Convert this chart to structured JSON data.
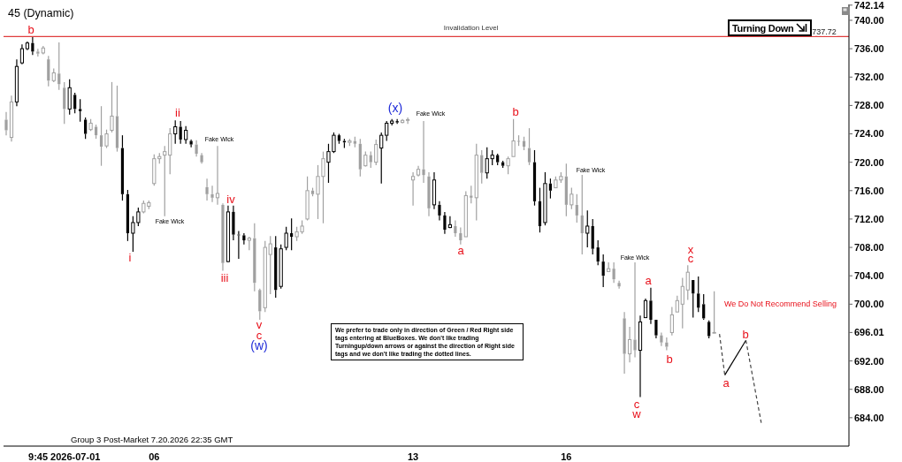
{
  "chart_data": {
    "type": "candlestick",
    "title": "45 (Dynamic)",
    "categories": [
      null,
      null,
      null,
      null,
      null,
      null,
      null,
      null,
      null,
      null,
      null,
      "9:45 2026-07-01",
      null,
      null,
      null,
      null,
      null,
      null,
      null,
      null,
      null,
      null,
      null,
      null,
      null,
      null,
      null,
      null,
      "06",
      null,
      null,
      null,
      null,
      null,
      null,
      null,
      null,
      null,
      null,
      null,
      null,
      null,
      null,
      null,
      null,
      null,
      null,
      null,
      null,
      null,
      null,
      null,
      null,
      null,
      null,
      null,
      null,
      null,
      null,
      null,
      null,
      null,
      null,
      null,
      null,
      null,
      null,
      null,
      null,
      null,
      null,
      null,
      null,
      null,
      null,
      null,
      null,
      "13",
      null,
      null,
      null,
      null,
      null,
      null,
      null,
      null,
      null,
      null,
      null,
      null,
      null,
      null,
      null,
      null,
      null,
      null,
      null,
      null,
      null,
      null,
      null,
      null,
      null,
      null,
      null,
      null,
      "16",
      null,
      null,
      null,
      null,
      null,
      null,
      null,
      null,
      null,
      null,
      null,
      null,
      null,
      null,
      null,
      null,
      null,
      null,
      null,
      null,
      null,
      null,
      null,
      null,
      null,
      null,
      null,
      null,
      null,
      null,
      null,
      null,
      null,
      null,
      null,
      null,
      null,
      null,
      null,
      null,
      null,
      null,
      null,
      null,
      null,
      null,
      null,
      null,
      null,
      null,
      null,
      null,
      null
    ],
    "ylim": [
      680,
      742.24
    ],
    "yticks": [
      {
        "value": 684,
        "label": "684.00"
      },
      {
        "value": 688,
        "label": "688.00"
      },
      {
        "value": 692,
        "label": "692.00"
      },
      696.01,
      {
        "value": 700,
        "label": "700.00"
      },
      {
        "value": 704,
        "label": "704.00"
      },
      {
        "value": 708,
        "label": "708.00"
      },
      {
        "value": 712,
        "label": "712.00"
      },
      {
        "value": 716,
        "label": "716.00"
      },
      {
        "value": 720,
        "label": "720.00"
      },
      {
        "value": 724,
        "label": "724.00"
      },
      {
        "value": 728,
        "label": "728.00"
      },
      {
        "value": 732,
        "label": "732.00"
      },
      {
        "value": 736,
        "label": "736.00"
      },
      {
        "value": 740,
        "label": "740.00"
      },
      742.14
    ],
    "series": [
      {
        "ohlc": [
          [
            726.0,
            727.1,
            723.8,
            724.5
          ],
          [
            723.5,
            729.4,
            722.9,
            728.5
          ],
          [
            728.5,
            734.5,
            727.9,
            733.5
          ],
          [
            734.0,
            736.6,
            733.8,
            736.0
          ],
          [
            736.0,
            737.0,
            735.8,
            736.8
          ],
          [
            736.8,
            737.72,
            735.1,
            735.6
          ],
          [
            735.6,
            736.0,
            734.9,
            735.3
          ],
          [
            735.4,
            736.4,
            735.2,
            736.1
          ],
          [
            734.5,
            735.0,
            730.7,
            731.5
          ],
          [
            731.5,
            733.2,
            731.3,
            732.6
          ],
          [
            732.5,
            736.9,
            730.2,
            731.0
          ],
          [
            730.5,
            731.3,
            725.4,
            727.5
          ],
          [
            727.5,
            731.7,
            726.7,
            730.5
          ],
          [
            729.5,
            729.8,
            726.9,
            727.5
          ],
          [
            727.5,
            728.9,
            725.7,
            727.2
          ],
          [
            726.0,
            726.3,
            723.3,
            724.0
          ],
          [
            724.6,
            726.1,
            724.4,
            725.5
          ],
          [
            725.0,
            725.3,
            723.3,
            723.8
          ],
          [
            723.8,
            727.9,
            719.5,
            722.2
          ],
          [
            722.3,
            724.6,
            722.0,
            724.0
          ],
          [
            724.5,
            731.3,
            724.2,
            726.5
          ],
          [
            726.5,
            730.8,
            721.5,
            722.0
          ],
          [
            722.0,
            723.8,
            714.6,
            715.5
          ],
          [
            715.5,
            716.1,
            708.9,
            710.0
          ],
          [
            710.0,
            712.4,
            707.4,
            711.5
          ],
          [
            711.5,
            713.6,
            711.0,
            713.0
          ],
          [
            713.0,
            714.6,
            712.8,
            714.2
          ],
          [
            713.8,
            714.6,
            713.4,
            714.3
          ],
          [
            717.0,
            721.1,
            716.7,
            720.5
          ],
          [
            720.5,
            721.3,
            719.8,
            720.8
          ],
          [
            721.0,
            722.3,
            712.4,
            721.5
          ],
          [
            721.0,
            724.8,
            718.3,
            724.0
          ],
          [
            724.0,
            725.9,
            722.6,
            725.0
          ],
          [
            725.0,
            725.8,
            722.6,
            723.2
          ],
          [
            723.2,
            725.1,
            722.6,
            724.5
          ],
          [
            723.0,
            723.2,
            722.1,
            722.5
          ],
          [
            722.5,
            723.1,
            720.8,
            721.2
          ],
          [
            721.0,
            721.3,
            719.8,
            720.0
          ],
          [
            716.5,
            717.7,
            714.6,
            715.5
          ],
          [
            715.5,
            716.7,
            714.4,
            715.0
          ],
          [
            715.0,
            722.3,
            714.0,
            715.6
          ],
          [
            714.0,
            714.2,
            704.7,
            705.8
          ],
          [
            706.0,
            713.9,
            705.9,
            713.0
          ],
          [
            713.0,
            713.9,
            709.0,
            709.8
          ],
          [
            709.8,
            710.3,
            706.4,
            709.7
          ],
          [
            709.7,
            710.0,
            708.4,
            709.0
          ],
          [
            709.0,
            709.5,
            707.6,
            709.3
          ],
          [
            709.3,
            711.4,
            701.8,
            703.0
          ],
          [
            702.0,
            702.2,
            697.8,
            699.0
          ],
          [
            699.5,
            708.9,
            698.9,
            708.0
          ],
          [
            707.0,
            709.6,
            701.4,
            708.5
          ],
          [
            708.0,
            709.6,
            700.9,
            702.0
          ],
          [
            702.5,
            708.4,
            702.2,
            707.8
          ],
          [
            708.0,
            710.9,
            707.6,
            710.0
          ],
          [
            710.0,
            712.1,
            707.6,
            709.5
          ],
          [
            709.5,
            710.9,
            708.9,
            710.2
          ],
          [
            710.2,
            711.8,
            709.9,
            711.0
          ],
          [
            712.0,
            718.0,
            711.8,
            716.0
          ],
          [
            716.0,
            716.4,
            715.2,
            715.5
          ],
          [
            715.5,
            719.6,
            712.0,
            718.0
          ],
          [
            718.0,
            721.5,
            711.4,
            720.5
          ],
          [
            720.0,
            722.6,
            717.1,
            721.5
          ],
          [
            721.5,
            724.2,
            721.3,
            723.8
          ],
          [
            723.8,
            724.0,
            722.6,
            723.0
          ],
          [
            723.0,
            723.3,
            722.0,
            722.8
          ],
          [
            722.8,
            723.3,
            722.3,
            723.0
          ],
          [
            723.0,
            723.6,
            722.1,
            722.6
          ],
          [
            722.6,
            723.3,
            718.0,
            719.0
          ],
          [
            719.5,
            721.5,
            719.4,
            721.0
          ],
          [
            721.0,
            721.5,
            719.2,
            720.0
          ],
          [
            720.0,
            723.2,
            719.6,
            722.5
          ],
          [
            722.0,
            724.2,
            717.0,
            723.8
          ],
          [
            723.8,
            725.8,
            723.0,
            725.5
          ],
          [
            725.5,
            726.1,
            725.2,
            725.8
          ],
          [
            725.8,
            726.1,
            725.4,
            725.6
          ],
          [
            725.6,
            726.1,
            725.5,
            725.9
          ],
          [
            725.9,
            726.3,
            725.4,
            726.0
          ],
          [
            717.5,
            718.6,
            713.9,
            718.0
          ],
          [
            718.2,
            719.5,
            718.0,
            719.0
          ],
          [
            719.0,
            725.8,
            717.1,
            718.2
          ],
          [
            718.0,
            718.6,
            712.4,
            713.5
          ],
          [
            714.0,
            718.6,
            713.4,
            717.5
          ],
          [
            714.0,
            714.5,
            711.8,
            712.5
          ],
          [
            712.5,
            713.0,
            709.9,
            710.5
          ],
          [
            710.8,
            712.4,
            710.7,
            711.2
          ],
          [
            711.0,
            711.8,
            709.5,
            710.0
          ],
          [
            710.0,
            710.8,
            708.4,
            709.0
          ],
          [
            709.5,
            715.9,
            709.5,
            715.3
          ],
          [
            715.3,
            716.7,
            714.2,
            715.0
          ],
          [
            715.0,
            722.6,
            711.8,
            721.0
          ],
          [
            721.0,
            721.7,
            717.0,
            718.5
          ],
          [
            718.5,
            722.1,
            717.7,
            720.5
          ],
          [
            720.5,
            721.7,
            719.6,
            721.0
          ],
          [
            721.0,
            721.2,
            719.6,
            720.0
          ],
          [
            720.0,
            720.2,
            719.2,
            719.5
          ],
          [
            719.5,
            720.8,
            718.3,
            720.5
          ],
          [
            720.8,
            726.1,
            720.8,
            723.0
          ],
          [
            723.0,
            723.8,
            722.3,
            723.0
          ],
          [
            723.0,
            723.6,
            721.7,
            722.2
          ],
          [
            722.0,
            724.8,
            719.6,
            720.0
          ],
          [
            720.0,
            721.7,
            713.9,
            714.5
          ],
          [
            714.5,
            716.4,
            710.1,
            711.0
          ],
          [
            711.5,
            718.6,
            711.1,
            717.0
          ],
          [
            717.0,
            717.7,
            714.9,
            716.0
          ],
          [
            716.4,
            718.0,
            716.4,
            717.5
          ],
          [
            717.5,
            718.6,
            717.1,
            718.0
          ],
          [
            718.0,
            719.8,
            712.4,
            714.0
          ],
          [
            714.0,
            716.4,
            713.4,
            715.5
          ],
          [
            714.0,
            715.5,
            711.5,
            712.5
          ],
          [
            712.5,
            718.2,
            707.0,
            710.0
          ],
          [
            710.0,
            713.2,
            708.0,
            711.0
          ],
          [
            711.0,
            712.0,
            707.0,
            707.8
          ],
          [
            708.0,
            709.0,
            705.5,
            706.0
          ],
          [
            706.0,
            707.0,
            702.4,
            704.0
          ],
          [
            704.6,
            705.9,
            704.6,
            705.0
          ],
          [
            705.0,
            705.9,
            703.0,
            703.5
          ],
          [
            703.0,
            703.3,
            702.2,
            702.5
          ],
          [
            698.0,
            698.9,
            690.2,
            693.0
          ],
          [
            693.0,
            696.8,
            691.8,
            695.0
          ],
          [
            695.0,
            705.9,
            692.5,
            693.5
          ],
          [
            693.5,
            698.4,
            686.9,
            697.5
          ],
          [
            698.1,
            700.8,
            698.1,
            700.5
          ],
          [
            700.5,
            702.3,
            697.2,
            697.8
          ],
          [
            697.8,
            697.8,
            695.2,
            695.6
          ],
          [
            695.6,
            696.0,
            694.1,
            694.6
          ],
          [
            694.6,
            695.3,
            693.5,
            694.0
          ],
          [
            696.0,
            699.6,
            695.6,
            698.5
          ],
          [
            698.9,
            701.2,
            698.9,
            700.5
          ],
          [
            700.0,
            703.7,
            696.6,
            702.5
          ],
          [
            702.0,
            705.5,
            700.6,
            704.5
          ],
          [
            703.4,
            703.4,
            698.1,
            701.5
          ],
          [
            701.5,
            703.9,
            698.9,
            699.5
          ],
          [
            700.0,
            701.4,
            697.8,
            698.0
          ],
          [
            697.5,
            697.7,
            695.2,
            695.5
          ],
          [
            696.0,
            701.8,
            695.9,
            696.01
          ],
          null,
          null,
          null,
          null,
          null,
          null,
          null,
          null,
          null,
          null,
          null,
          null,
          null,
          null,
          null,
          null,
          null,
          null,
          null,
          null,
          null,
          null,
          null,
          null,
          null
        ],
        "colors": [
          "#a0a0a0",
          "#a0a0a0",
          "#000000",
          "#000000",
          "#000000",
          "#000000",
          "#a0a0a0",
          "#a0a0a0",
          "#a0a0a0",
          "#a0a0a0",
          "#a0a0a0",
          "#a0a0a0",
          "#000000",
          "#000000",
          "#000000",
          "#000000",
          "#a0a0a0",
          "#a0a0a0",
          "#a0a0a0",
          "#a0a0a0",
          "#a0a0a0",
          "#a0a0a0",
          "#000000",
          "#000000",
          "#000000",
          "#000000",
          "#a0a0a0",
          "#a0a0a0",
          "#a0a0a0",
          "#a0a0a0",
          "#a0a0a0",
          "#a0a0a0",
          "#000000",
          "#000000",
          "#000000",
          "#000000",
          "#a0a0a0",
          "#a0a0a0",
          "#a0a0a0",
          "#a0a0a0",
          "#a0a0a0",
          "#a0a0a0",
          "#000000",
          "#000000",
          "#000000",
          "#000000",
          "#a0a0a0",
          "#a0a0a0",
          "#a0a0a0",
          "#a0a0a0",
          "#a0a0a0",
          "#000000",
          "#000000",
          "#000000",
          "#000000",
          "#a0a0a0",
          "#a0a0a0",
          "#a0a0a0",
          "#a0a0a0",
          "#a0a0a0",
          "#a0a0a0",
          "#000000",
          "#000000",
          "#000000",
          "#000000",
          "#a0a0a0",
          "#a0a0a0",
          "#a0a0a0",
          "#a0a0a0",
          "#a0a0a0",
          "#a0a0a0",
          "#000000",
          "#000000",
          "#000000",
          "#000000",
          "#a0a0a0",
          "#a0a0a0",
          "#a0a0a0",
          "#a0a0a0",
          "#a0a0a0",
          "#a0a0a0",
          "#000000",
          "#000000",
          "#000000",
          "#000000",
          "#a0a0a0",
          "#a0a0a0",
          "#a0a0a0",
          "#a0a0a0",
          "#a0a0a0",
          "#a0a0a0",
          "#000000",
          "#000000",
          "#000000",
          "#000000",
          "#a0a0a0",
          "#a0a0a0",
          "#a0a0a0",
          "#a0a0a0",
          "#a0a0a0",
          "#000000",
          "#000000",
          "#000000",
          "#000000",
          "#a0a0a0",
          "#a0a0a0",
          "#a0a0a0",
          "#a0a0a0",
          "#a0a0a0",
          "#a0a0a0",
          "#000000",
          "#000000",
          "#000000",
          "#000000",
          "#a0a0a0",
          "#a0a0a0",
          "#a0a0a0",
          "#a0a0a0",
          "#a0a0a0",
          "#a0a0a0",
          "#000000",
          "#000000",
          "#000000",
          "#000000",
          "#a0a0a0",
          "#a0a0a0",
          "#a0a0a0",
          "#a0a0a0",
          "#a0a0a0",
          "#a0a0a0",
          "#000000",
          "#000000",
          "#000000",
          "#000000",
          "#a0a0a0",
          null,
          null,
          null,
          null,
          null,
          null,
          null,
          null,
          null,
          null,
          null,
          null,
          null,
          null,
          null,
          null,
          null,
          null,
          null,
          null,
          null,
          null,
          null,
          null,
          null
        ]
      },
      {
        "type": "line",
        "color": "#444444",
        "line_style": "dashed",
        "values": [
          null,
          null,
          null,
          null,
          null,
          null,
          null,
          null,
          null,
          null,
          null,
          null,
          null,
          null,
          null,
          null,
          null,
          null,
          null,
          null,
          null,
          null,
          null,
          null,
          null,
          null,
          null,
          null,
          null,
          null,
          null,
          null,
          null,
          null,
          null,
          null,
          null,
          null,
          null,
          null,
          null,
          null,
          null,
          null,
          null,
          null,
          null,
          null,
          null,
          null,
          null,
          null,
          null,
          null,
          null,
          null,
          null,
          null,
          null,
          null,
          null,
          null,
          null,
          null,
          null,
          null,
          null,
          null,
          null,
          null,
          null,
          null,
          null,
          null,
          null,
          null,
          null,
          null,
          null,
          null,
          null,
          null,
          null,
          null,
          null,
          null,
          null,
          null,
          null,
          null,
          null,
          null,
          null,
          null,
          null,
          null,
          null,
          null,
          null,
          null,
          null,
          null,
          null,
          null,
          null,
          null,
          null,
          null,
          null,
          null,
          null,
          null,
          null,
          null,
          null,
          null,
          null,
          null,
          null,
          null,
          null,
          null,
          null,
          null,
          null,
          null,
          null,
          null,
          null,
          null,
          null,
          null,
          null,
          null,
          null,
          695.8,
          690.0,
          null,
          null,
          null,
          null,
          null,
          null,
          null,
          null,
          null,
          null,
          null,
          null,
          null,
          null,
          null,
          null,
          null,
          null,
          null,
          null,
          null,
          null,
          null
        ]
      },
      {
        "type": "line",
        "color": "#000000",
        "line_style": "solid",
        "values": [
          null,
          null,
          null,
          null,
          null,
          null,
          null,
          null,
          null,
          null,
          null,
          null,
          null,
          null,
          null,
          null,
          null,
          null,
          null,
          null,
          null,
          null,
          null,
          null,
          null,
          null,
          null,
          null,
          null,
          null,
          null,
          null,
          null,
          null,
          null,
          null,
          null,
          null,
          null,
          null,
          null,
          null,
          null,
          null,
          null,
          null,
          null,
          null,
          null,
          null,
          null,
          null,
          null,
          null,
          null,
          null,
          null,
          null,
          null,
          null,
          null,
          null,
          null,
          null,
          null,
          null,
          null,
          null,
          null,
          null,
          null,
          null,
          null,
          null,
          null,
          null,
          null,
          null,
          null,
          null,
          null,
          null,
          null,
          null,
          null,
          null,
          null,
          null,
          null,
          null,
          null,
          null,
          null,
          null,
          null,
          null,
          null,
          null,
          null,
          null,
          null,
          null,
          null,
          null,
          null,
          null,
          null,
          null,
          null,
          null,
          null,
          null,
          null,
          null,
          null,
          null,
          null,
          null,
          null,
          null,
          null,
          null,
          null,
          null,
          null,
          null,
          null,
          null,
          null,
          null,
          null,
          null,
          null,
          null,
          null,
          null,
          690.0,
          null,
          null,
          null,
          694.9,
          null,
          null,
          null,
          null,
          null,
          null,
          null,
          null,
          null,
          null,
          null,
          null,
          null,
          null,
          null,
          null,
          null,
          null,
          null
        ]
      },
      {
        "type": "line",
        "color": "#444444",
        "line_style": "dashed",
        "values": [
          null,
          null,
          null,
          null,
          null,
          null,
          null,
          null,
          null,
          null,
          null,
          null,
          null,
          null,
          null,
          null,
          null,
          null,
          null,
          null,
          null,
          null,
          null,
          null,
          null,
          null,
          null,
          null,
          null,
          null,
          null,
          null,
          null,
          null,
          null,
          null,
          null,
          null,
          null,
          null,
          null,
          null,
          null,
          null,
          null,
          null,
          null,
          null,
          null,
          null,
          null,
          null,
          null,
          null,
          null,
          null,
          null,
          null,
          null,
          null,
          null,
          null,
          null,
          null,
          null,
          null,
          null,
          null,
          null,
          null,
          null,
          null,
          null,
          null,
          null,
          null,
          null,
          null,
          null,
          null,
          null,
          null,
          null,
          null,
          null,
          null,
          null,
          null,
          null,
          null,
          null,
          null,
          null,
          null,
          null,
          null,
          null,
          null,
          null,
          null,
          null,
          null,
          null,
          null,
          null,
          null,
          null,
          null,
          null,
          null,
          null,
          null,
          null,
          null,
          null,
          null,
          null,
          null,
          null,
          null,
          null,
          null,
          null,
          null,
          null,
          null,
          null,
          null,
          null,
          null,
          null,
          null,
          null,
          null,
          null,
          null,
          null,
          null,
          null,
          null,
          694.9,
          null,
          null,
          682.9,
          null,
          null,
          null,
          null,
          null,
          null,
          null,
          null,
          null,
          null,
          null,
          null,
          null,
          null,
          null,
          null
        ]
      }
    ],
    "ref_lines": [
      {
        "axis": "y",
        "value": 737.72,
        "label": "Invalidation Level",
        "color": "#e03c3c"
      }
    ],
    "annotations": [
      "b",
      "i",
      "Fake Wick",
      "ii",
      "Fake Wick",
      "iii",
      "iv",
      "v",
      "c",
      "(w)",
      "(x)",
      "Fake Wick",
      "a",
      "b",
      "Fake Wick",
      "Fake Wick",
      "c",
      "w",
      "a",
      "b",
      "x",
      "c",
      "a",
      "b",
      "We Do Not Recommend Selling",
      "We prefer to trade only in direction of Green / Red Right side tags entering at BlueBoxes. We don't like trading Turningup/down arrows or against the direction of Right side tags and we don't like trading the dotted lines.",
      "Turning Down",
      "Group 3 Post-Market 7.20.2026 22:35 GMT",
      "737.72"
    ]
  }
}
